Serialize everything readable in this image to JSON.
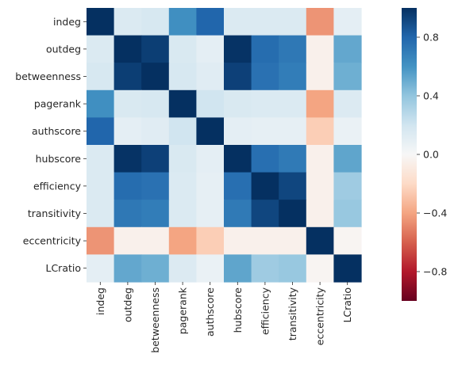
{
  "chart_data": {
    "type": "heatmap",
    "title": "",
    "xlabel": "",
    "ylabel": "",
    "rows": [
      "indeg",
      "outdeg",
      "betweenness",
      "pagerank",
      "authscore",
      "hubscore",
      "efficiency",
      "transitivity",
      "eccentricity",
      "LCratio"
    ],
    "columns": [
      "indeg",
      "outdeg",
      "betweenness",
      "pagerank",
      "authscore",
      "hubscore",
      "efficiency",
      "transitivity",
      "eccentricity",
      "LCratio"
    ],
    "values": [
      [
        1.0,
        0.15,
        0.17,
        0.62,
        0.8,
        0.15,
        0.15,
        0.15,
        -0.45,
        0.1
      ],
      [
        0.15,
        1.0,
        0.95,
        0.16,
        0.1,
        0.99,
        0.77,
        0.72,
        -0.05,
        0.52
      ],
      [
        0.17,
        0.95,
        1.0,
        0.17,
        0.12,
        0.94,
        0.75,
        0.7,
        -0.05,
        0.49
      ],
      [
        0.62,
        0.16,
        0.17,
        1.0,
        0.2,
        0.16,
        0.15,
        0.15,
        -0.4,
        0.14
      ],
      [
        0.8,
        0.1,
        0.12,
        0.2,
        1.0,
        0.1,
        0.09,
        0.09,
        -0.25,
        0.07
      ],
      [
        0.15,
        0.99,
        0.94,
        0.16,
        0.1,
        1.0,
        0.76,
        0.71,
        -0.05,
        0.53
      ],
      [
        0.15,
        0.77,
        0.75,
        0.15,
        0.09,
        0.76,
        1.0,
        0.92,
        -0.05,
        0.36
      ],
      [
        0.15,
        0.72,
        0.7,
        0.15,
        0.09,
        0.71,
        0.92,
        1.0,
        -0.05,
        0.38
      ],
      [
        -0.45,
        -0.05,
        -0.05,
        -0.4,
        -0.25,
        -0.05,
        -0.05,
        -0.05,
        1.0,
        -0.02
      ],
      [
        0.1,
        0.52,
        0.49,
        0.14,
        0.07,
        0.53,
        0.36,
        0.38,
        -0.02,
        1.0
      ]
    ],
    "vmin": -1.0,
    "vmax": 1.0,
    "colormap": "RdBu",
    "colorbar": {
      "ticks": [
        0.8,
        0.4,
        0.0,
        -0.4,
        -0.8
      ],
      "tick_labels": [
        "0.8",
        "0.4",
        "0.0",
        "−0.4",
        "−0.8"
      ]
    },
    "grid": false,
    "legend": "colorbar-right"
  }
}
